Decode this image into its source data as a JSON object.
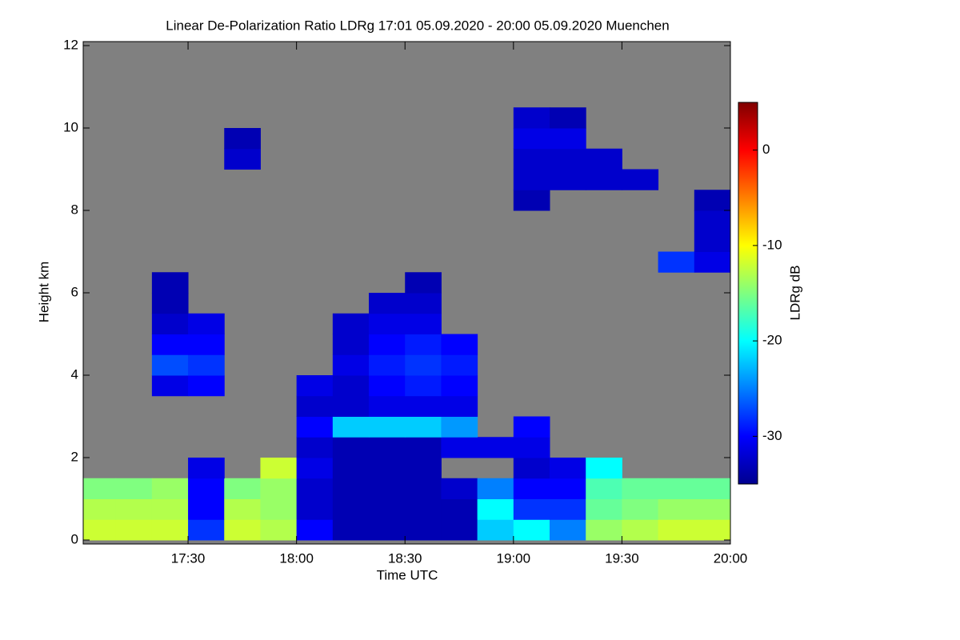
{
  "chart_data": {
    "type": "heatmap",
    "title": "Linear De-Polarization Ratio LDRg   17:01 05.09.2020 - 20:00 05.09.2020 Muenchen",
    "x_label": "Time UTC",
    "y_label": "Height km",
    "colorbar_label": "LDRg dB",
    "xlim": [
      "17:01",
      "20:00"
    ],
    "xticks": [
      "17:30",
      "18:00",
      "18:30",
      "19:00",
      "19:30",
      "20:00"
    ],
    "ylim": [
      0,
      12
    ],
    "yticks": [
      0,
      2,
      4,
      6,
      8,
      10,
      12
    ],
    "zlim": [
      -35,
      5
    ],
    "zticks": [
      0,
      -10,
      -20,
      -30
    ],
    "colormap": "jet",
    "background_color": "#808080",
    "x": [
      "17:05",
      "17:15",
      "17:25",
      "17:35",
      "17:45",
      "17:55",
      "18:05",
      "18:15",
      "18:25",
      "18:35",
      "18:45",
      "18:55",
      "19:05",
      "19:15",
      "19:25",
      "19:35",
      "19:45",
      "19:55"
    ],
    "y": [
      0.25,
      0.75,
      1.25,
      1.75,
      2.25,
      2.75,
      3.25,
      3.75,
      4.25,
      4.75,
      5.25,
      5.75,
      6.25,
      6.75,
      7.25,
      7.75,
      8.25,
      8.75,
      9.25,
      9.75,
      10.25,
      10.75,
      11.25,
      11.75
    ],
    "z": [
      [
        -12,
        -12,
        -12,
        -28,
        -12,
        -13,
        -30,
        -33,
        -33,
        -33,
        -33,
        -22,
        -20,
        -25,
        -14,
        -13,
        -12,
        -12
      ],
      [
        -13,
        -13,
        -13,
        -30,
        -13,
        -14,
        -32,
        -33,
        -33,
        -33,
        -33,
        -20,
        -28,
        -28,
        -16,
        -15,
        -14,
        -14
      ],
      [
        -15,
        -15,
        -14,
        -30,
        -15,
        -14,
        -32,
        -33,
        -33,
        -33,
        -32,
        -25,
        -30,
        -30,
        -17,
        -16,
        -16,
        -16
      ],
      [
        null,
        null,
        null,
        -31,
        null,
        -12,
        -31,
        -33,
        -33,
        -33,
        null,
        null,
        -32,
        -31,
        -20,
        null,
        null,
        null
      ],
      [
        null,
        null,
        null,
        null,
        null,
        null,
        -32,
        -33,
        -33,
        -33,
        -31,
        -31,
        -31,
        null,
        null,
        null,
        null,
        null
      ],
      [
        null,
        null,
        null,
        null,
        null,
        null,
        -30,
        -22,
        -22,
        -22,
        -24,
        null,
        -30,
        null,
        null,
        null,
        null,
        null
      ],
      [
        null,
        null,
        null,
        null,
        null,
        null,
        -32,
        -32,
        -31,
        -31,
        -31,
        null,
        null,
        null,
        null,
        null,
        null,
        null
      ],
      [
        null,
        null,
        -31,
        -30,
        null,
        null,
        -31,
        -32,
        -30,
        -29,
        -30,
        null,
        null,
        null,
        null,
        null,
        null,
        null
      ],
      [
        null,
        null,
        -27,
        -28,
        null,
        null,
        null,
        -31,
        -29,
        -28,
        -29,
        null,
        null,
        null,
        null,
        null,
        null,
        null
      ],
      [
        null,
        null,
        -30,
        -30,
        null,
        null,
        null,
        -32,
        -30,
        -29,
        -30,
        null,
        null,
        null,
        null,
        null,
        null,
        null
      ],
      [
        null,
        null,
        -32,
        -31,
        null,
        null,
        null,
        -32,
        -31,
        -31,
        null,
        null,
        null,
        null,
        null,
        null,
        null,
        null
      ],
      [
        null,
        null,
        -33,
        null,
        null,
        null,
        null,
        null,
        -32,
        -32,
        null,
        null,
        null,
        null,
        null,
        null,
        null,
        null
      ],
      [
        null,
        null,
        -33,
        null,
        null,
        null,
        null,
        null,
        null,
        -33,
        null,
        null,
        null,
        null,
        null,
        null,
        null,
        null
      ],
      [
        null,
        null,
        null,
        null,
        null,
        null,
        null,
        null,
        null,
        null,
        null,
        null,
        null,
        null,
        null,
        null,
        -28,
        -31
      ],
      [
        null,
        null,
        null,
        null,
        null,
        null,
        null,
        null,
        null,
        null,
        null,
        null,
        null,
        null,
        null,
        null,
        null,
        -32
      ],
      [
        null,
        null,
        null,
        null,
        null,
        null,
        null,
        null,
        null,
        null,
        null,
        null,
        null,
        null,
        null,
        null,
        null,
        -32
      ],
      [
        null,
        null,
        null,
        null,
        null,
        null,
        null,
        null,
        null,
        null,
        null,
        null,
        -33,
        null,
        null,
        null,
        null,
        -33
      ],
      [
        null,
        null,
        null,
        null,
        null,
        null,
        null,
        null,
        null,
        null,
        null,
        null,
        -32,
        -32,
        -32,
        -32,
        null,
        null
      ],
      [
        null,
        null,
        null,
        null,
        -32,
        null,
        null,
        null,
        null,
        null,
        null,
        null,
        -32,
        -32,
        -32,
        null,
        null,
        null
      ],
      [
        null,
        null,
        null,
        null,
        -33,
        null,
        null,
        null,
        null,
        null,
        null,
        null,
        -31,
        -31,
        null,
        null,
        null,
        null
      ],
      [
        null,
        null,
        null,
        null,
        null,
        null,
        null,
        null,
        null,
        null,
        null,
        null,
        -32,
        -33,
        null,
        null,
        null,
        null
      ],
      [
        null,
        null,
        null,
        null,
        null,
        null,
        null,
        null,
        null,
        null,
        null,
        null,
        null,
        null,
        null,
        null,
        null,
        null
      ],
      [
        null,
        null,
        null,
        null,
        null,
        null,
        null,
        null,
        null,
        null,
        null,
        null,
        null,
        null,
        null,
        null,
        null,
        null
      ],
      [
        null,
        null,
        null,
        null,
        null,
        null,
        null,
        null,
        null,
        null,
        null,
        null,
        null,
        null,
        null,
        null,
        null,
        null
      ]
    ]
  }
}
